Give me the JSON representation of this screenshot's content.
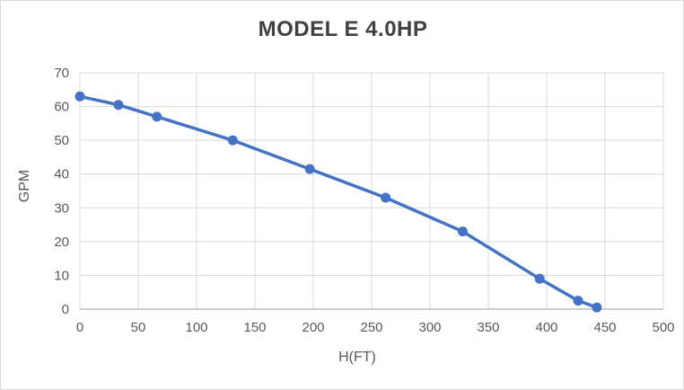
{
  "chart_data": {
    "type": "line",
    "title": "MODEL E 4.0HP",
    "xlabel": "H(FT)",
    "ylabel": "GPM",
    "x": [
      0,
      33,
      66,
      131,
      197,
      262,
      328,
      394,
      427,
      443
    ],
    "y": [
      63,
      60.5,
      57,
      50,
      41.5,
      33,
      23,
      9,
      2.5,
      0.5
    ],
    "xlim": [
      0,
      500
    ],
    "ylim": [
      0,
      70
    ],
    "x_ticks": [
      0,
      50,
      100,
      150,
      200,
      250,
      300,
      350,
      400,
      450,
      500
    ],
    "y_ticks": [
      0,
      10,
      20,
      30,
      40,
      50,
      60,
      70
    ],
    "grid": true,
    "legend": false,
    "marker": "circle",
    "colors": {
      "series": "#4472C4",
      "gridline": "#d9d9d9",
      "axis_line": "#bfbfbf",
      "tick_label": "#595959",
      "axis_title": "#595959",
      "title": "#404040",
      "background": "#ffffff"
    }
  }
}
